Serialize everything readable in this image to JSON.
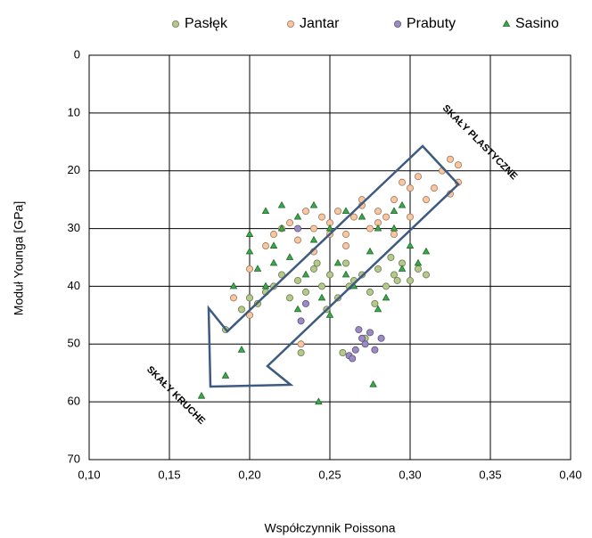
{
  "chart_data": {
    "type": "scatter",
    "xlabel": "Współczynnik Poissona",
    "ylabel": "Moduł Younga [GPa]",
    "annotations": [
      "SKAŁY PLASTYCZNE",
      "SKAŁY KRUCHE"
    ],
    "xlim": [
      0.1,
      0.4
    ],
    "xticks": [
      {
        "value": 0.1,
        "label": "0,10"
      },
      {
        "value": 0.15,
        "label": "0,15"
      },
      {
        "value": 0.2,
        "label": "0,20"
      },
      {
        "value": 0.25,
        "label": "0,25"
      },
      {
        "value": 0.3,
        "label": "0,30"
      },
      {
        "value": 0.35,
        "label": "0,35"
      },
      {
        "value": 0.4,
        "label": "0,40"
      }
    ],
    "ylim": [
      0,
      70
    ],
    "yticks": [
      0,
      10,
      20,
      30,
      40,
      50,
      60,
      70
    ],
    "y_inverted": true,
    "grid": true,
    "legend": "top",
    "series": [
      {
        "name": "Pasłęk",
        "color": "#b5c98a",
        "marker": "circle",
        "x": [
          0.185,
          0.195,
          0.2,
          0.205,
          0.21,
          0.215,
          0.22,
          0.225,
          0.23,
          0.235,
          0.24,
          0.245,
          0.25,
          0.255,
          0.26,
          0.265,
          0.27,
          0.275,
          0.28,
          0.285,
          0.29,
          0.295,
          0.3,
          0.305,
          0.31,
          0.232,
          0.248,
          0.262,
          0.278,
          0.292,
          0.258,
          0.272,
          0.242,
          0.288
        ],
        "values": [
          47.5,
          44,
          42,
          43,
          41,
          40,
          38,
          42,
          39,
          41,
          37,
          40,
          38,
          42,
          36,
          39,
          38,
          41,
          37,
          40,
          38,
          36,
          39,
          37,
          38,
          51.5,
          44,
          40,
          43,
          39,
          51.5,
          49,
          36,
          35
        ]
      },
      {
        "name": "Jantar",
        "color": "#f9c6a0",
        "marker": "circle",
        "x": [
          0.19,
          0.2,
          0.21,
          0.215,
          0.22,
          0.225,
          0.23,
          0.235,
          0.24,
          0.245,
          0.25,
          0.255,
          0.26,
          0.265,
          0.27,
          0.275,
          0.28,
          0.285,
          0.29,
          0.295,
          0.3,
          0.305,
          0.31,
          0.315,
          0.32,
          0.325,
          0.33,
          0.33,
          0.325,
          0.3,
          0.29,
          0.28,
          0.27,
          0.26,
          0.25,
          0.24,
          0.2,
          0.232
        ],
        "values": [
          42,
          45,
          33,
          31,
          30,
          29,
          32,
          27,
          30,
          28,
          29,
          27,
          31,
          28,
          26,
          30,
          27,
          28,
          25,
          22,
          23,
          21,
          25,
          23,
          20,
          18,
          19,
          22,
          24,
          28,
          31,
          29,
          25,
          33,
          31,
          34,
          37,
          50
        ]
      },
      {
        "name": "Prabuty",
        "color": "#9b8ac4",
        "marker": "circle",
        "x": [
          0.23,
          0.235,
          0.232,
          0.262,
          0.266,
          0.27,
          0.272,
          0.275,
          0.278,
          0.282,
          0.268,
          0.264
        ],
        "values": [
          30,
          43,
          46,
          52,
          51,
          49,
          50,
          48,
          51,
          49,
          47.5,
          52.5
        ]
      },
      {
        "name": "Sasino",
        "color": "#3aaa4a",
        "marker": "triangle",
        "x": [
          0.17,
          0.185,
          0.19,
          0.195,
          0.2,
          0.205,
          0.21,
          0.215,
          0.22,
          0.225,
          0.23,
          0.235,
          0.24,
          0.243,
          0.245,
          0.25,
          0.255,
          0.26,
          0.265,
          0.27,
          0.275,
          0.277,
          0.28,
          0.285,
          0.29,
          0.295,
          0.3,
          0.305,
          0.31,
          0.21,
          0.22,
          0.23,
          0.2,
          0.25,
          0.26,
          0.28,
          0.29,
          0.24,
          0.215,
          0.295
        ],
        "values": [
          59,
          55.5,
          40,
          51,
          34,
          37,
          27,
          33,
          30,
          35,
          28,
          38,
          26,
          60,
          42,
          30,
          36,
          27,
          40,
          28,
          34,
          57,
          30,
          42,
          27,
          37,
          33,
          36,
          34,
          40,
          26,
          44,
          31,
          45,
          38,
          44,
          30,
          32,
          36,
          26
        ]
      }
    ]
  }
}
